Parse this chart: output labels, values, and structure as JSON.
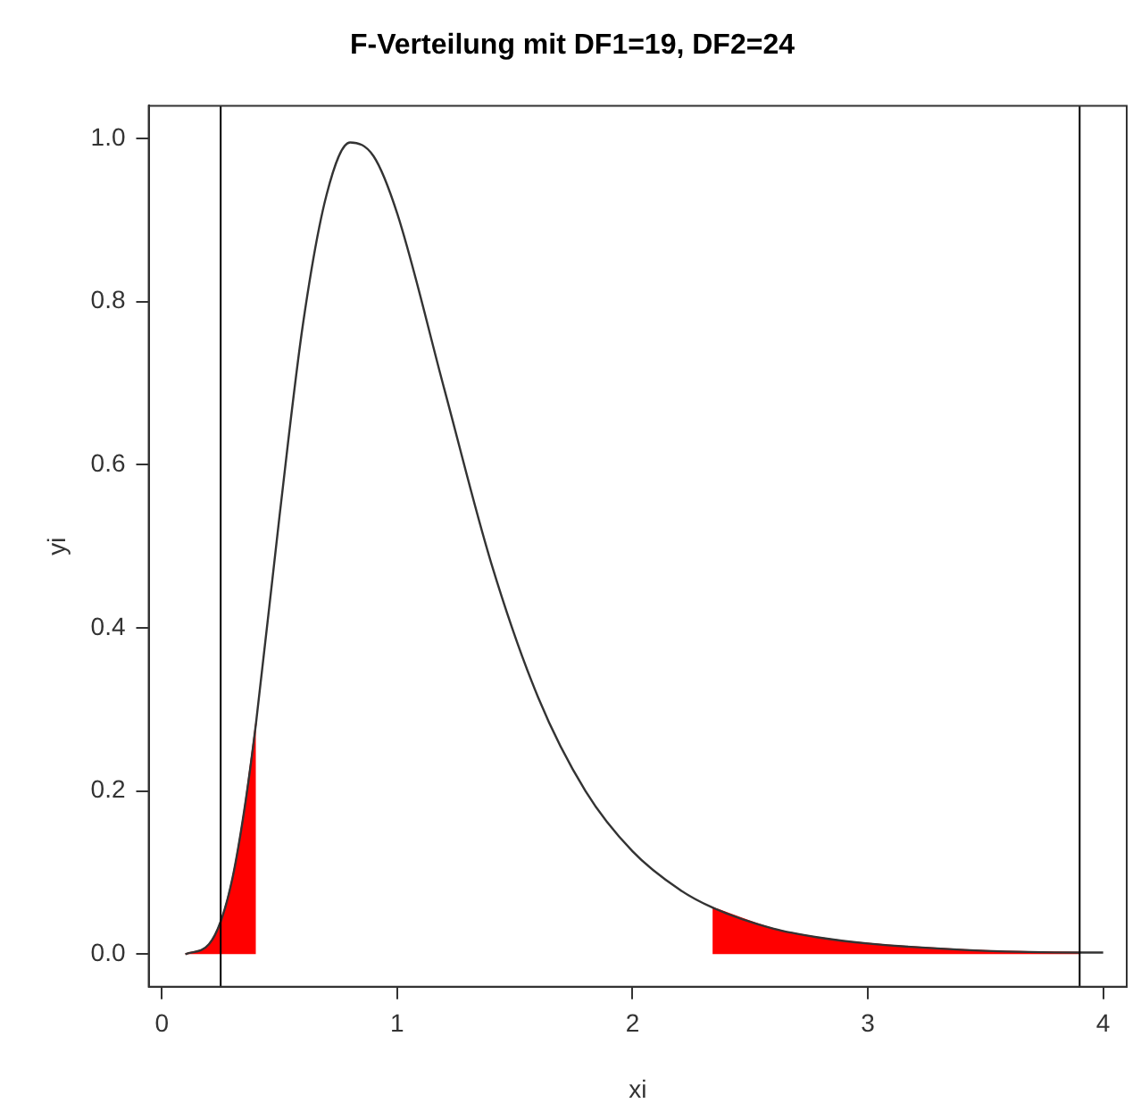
{
  "chart_data": {
    "type": "line",
    "title": "F-Verteilung mit DF1=19, DF2=24",
    "xlabel": "xi",
    "ylabel": "yi",
    "series": [
      {
        "type": "area",
        "color": "#ff0000",
        "x": [
          0.1,
          0.2,
          0.25,
          0.3,
          0.35,
          0.4
        ],
        "values": [
          0.0,
          0.012,
          0.04,
          0.093,
          0.176,
          0.283
        ]
      },
      {
        "type": "area",
        "color": "#ff0000",
        "x": [
          2.34,
          2.6,
          2.8,
          3.0,
          3.5,
          3.9
        ],
        "values": [
          0.057,
          0.031,
          0.02,
          0.013,
          0.004,
          0.002
        ]
      },
      {
        "color": "#333333",
        "x": [
          0.1,
          0.2,
          0.25,
          0.3,
          0.35,
          0.4,
          0.5,
          0.6,
          0.7,
          0.8,
          0.9,
          1.0,
          1.2,
          1.4,
          1.6,
          1.8,
          2.0,
          2.2,
          2.34,
          2.6,
          2.8,
          3.0,
          3.5,
          3.9,
          4.0
        ],
        "values": [
          0.0,
          0.012,
          0.04,
          0.093,
          0.176,
          0.283,
          0.537,
          0.773,
          0.931,
          0.995,
          0.978,
          0.908,
          0.693,
          0.479,
          0.314,
          0.2,
          0.126,
          0.079,
          0.057,
          0.031,
          0.02,
          0.013,
          0.004,
          0.002,
          0.002
        ]
      }
    ],
    "xlim": [
      -0.056,
      4.1
    ],
    "xticks": [
      0,
      1,
      2,
      3,
      4
    ],
    "ylim": [
      -0.04,
      1.04
    ],
    "yticks": [
      {
        "value": 0,
        "label": "0.0"
      },
      0.2,
      0.4,
      0.6,
      0.8,
      {
        "value": 1,
        "label": "1.0"
      }
    ],
    "ref_lines": [
      {
        "axis": "x",
        "value": 0.25,
        "color": "#000000"
      },
      {
        "axis": "x",
        "value": 3.9,
        "color": "#000000"
      }
    ],
    "grid": false,
    "legend": false,
    "marker": "none",
    "line_style": "solid"
  }
}
